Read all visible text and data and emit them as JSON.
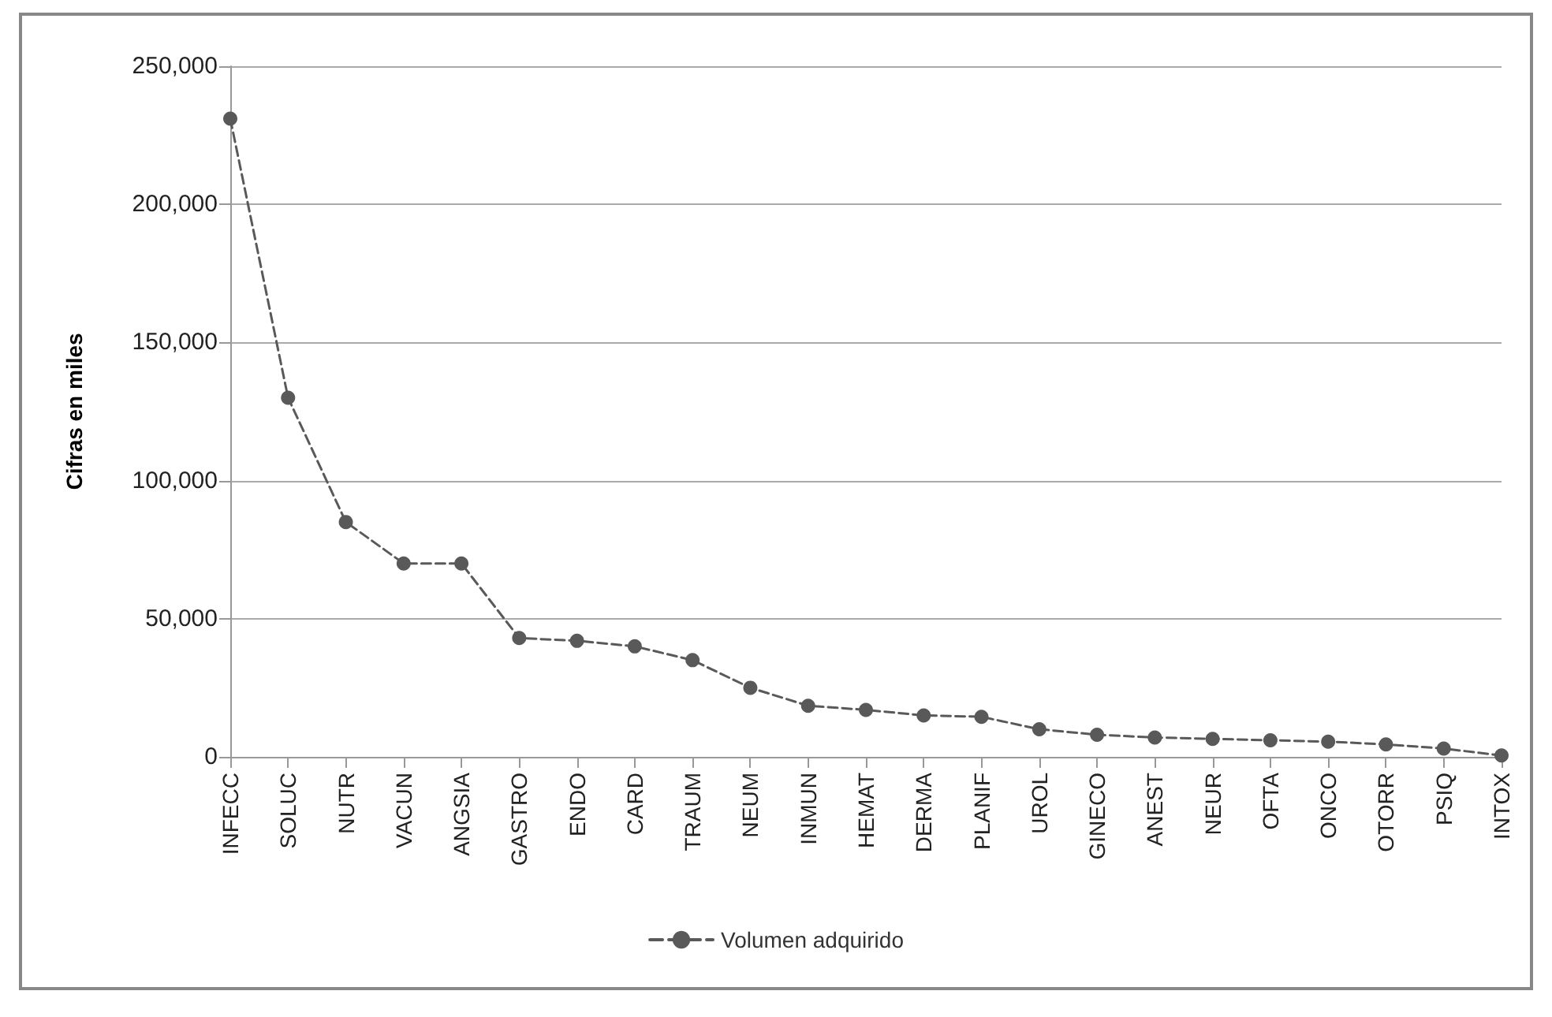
{
  "chart_data": {
    "type": "line",
    "ylabel": "Cifras en miles",
    "categories": [
      "INFECC",
      "SOLUC",
      "NUTR",
      "VACUN",
      "ANGSIA",
      "GASTRO",
      "ENDO",
      "CARD",
      "TRAUM",
      "NEUM",
      "INMUN",
      "HEMAT",
      "DERMA",
      "PLANIF",
      "UROL",
      "GINECO",
      "ANEST",
      "NEUR",
      "OFTA",
      "ONCO",
      "OTORR",
      "PSIQ",
      "INTOX"
    ],
    "series": [
      {
        "name": "Volumen adquirido",
        "color": "#595959",
        "values": [
          231000,
          130000,
          85000,
          70000,
          70000,
          43000,
          42000,
          40000,
          35000,
          25000,
          18500,
          17000,
          15000,
          14500,
          10000,
          8000,
          7000,
          6500,
          6000,
          5500,
          4500,
          3000,
          500
        ]
      }
    ],
    "ylim": [
      0,
      250000
    ],
    "yticks": [
      "0",
      {
        "value": 50000,
        "label": "50,000"
      },
      {
        "value": 100000,
        "label": "100,000"
      },
      {
        "value": 150000,
        "label": "150,000"
      },
      {
        "value": 200000,
        "label": "200,000"
      },
      {
        "value": 250000,
        "label": "250,000"
      }
    ],
    "grid": "y",
    "legend": "bottom",
    "marker": "circle",
    "line_style": "dashed"
  }
}
